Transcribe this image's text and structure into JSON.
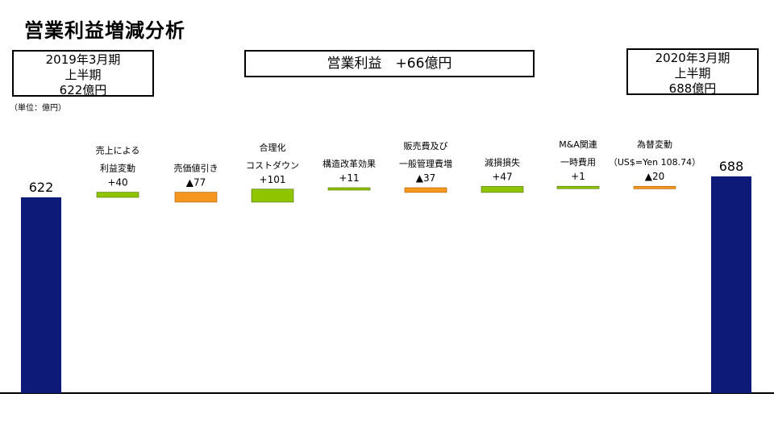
{
  "title": "営業利益増減分析",
  "box_left": {
    "line1": "2019年3月期",
    "line2": "上半期",
    "line3": "622億円"
  },
  "box_center": {
    "text": "営業利益　+66億円"
  },
  "box_right": {
    "line1": "2020年3月期",
    "line2": "上半期",
    "line3": "688億円"
  },
  "unit_label": "（単位：億円）",
  "colors": {
    "total": "#0d1a78",
    "increase": "#8fc400",
    "decrease": "#f5961e",
    "axis": "#000000"
  },
  "chart_data": {
    "type": "bar",
    "subtype": "waterfall",
    "start": {
      "value": 622,
      "label": "622"
    },
    "end": {
      "value": 688,
      "label": "688"
    },
    "steps": [
      {
        "label_lines": [
          "売上による",
          "利益変動"
        ],
        "delta": 40,
        "value_label": "+40",
        "kind": "increase"
      },
      {
        "label_lines": [
          "売価値引き"
        ],
        "delta": -77,
        "value_label": "▲77",
        "kind": "decrease"
      },
      {
        "label_lines": [
          "合理化",
          "コストダウン"
        ],
        "delta": 101,
        "value_label": "+101",
        "kind": "increase"
      },
      {
        "label_lines": [
          "構造改革効果"
        ],
        "delta": 11,
        "value_label": "+11",
        "kind": "increase"
      },
      {
        "label_lines": [
          "販売費及び",
          "一般管理費増"
        ],
        "delta": -37,
        "value_label": "▲37",
        "kind": "decrease"
      },
      {
        "label_lines": [
          "減損損失"
        ],
        "delta": 47,
        "value_label": "+47",
        "kind": "increase"
      },
      {
        "label_lines": [
          "M&A関連",
          "一時費用"
        ],
        "delta": 1,
        "value_label": "+1",
        "kind": "increase"
      },
      {
        "label_lines": [
          "為替変動",
          "（US$=Yen 108.74）"
        ],
        "delta": -20,
        "value_label": "▲20",
        "kind": "decrease"
      }
    ]
  }
}
